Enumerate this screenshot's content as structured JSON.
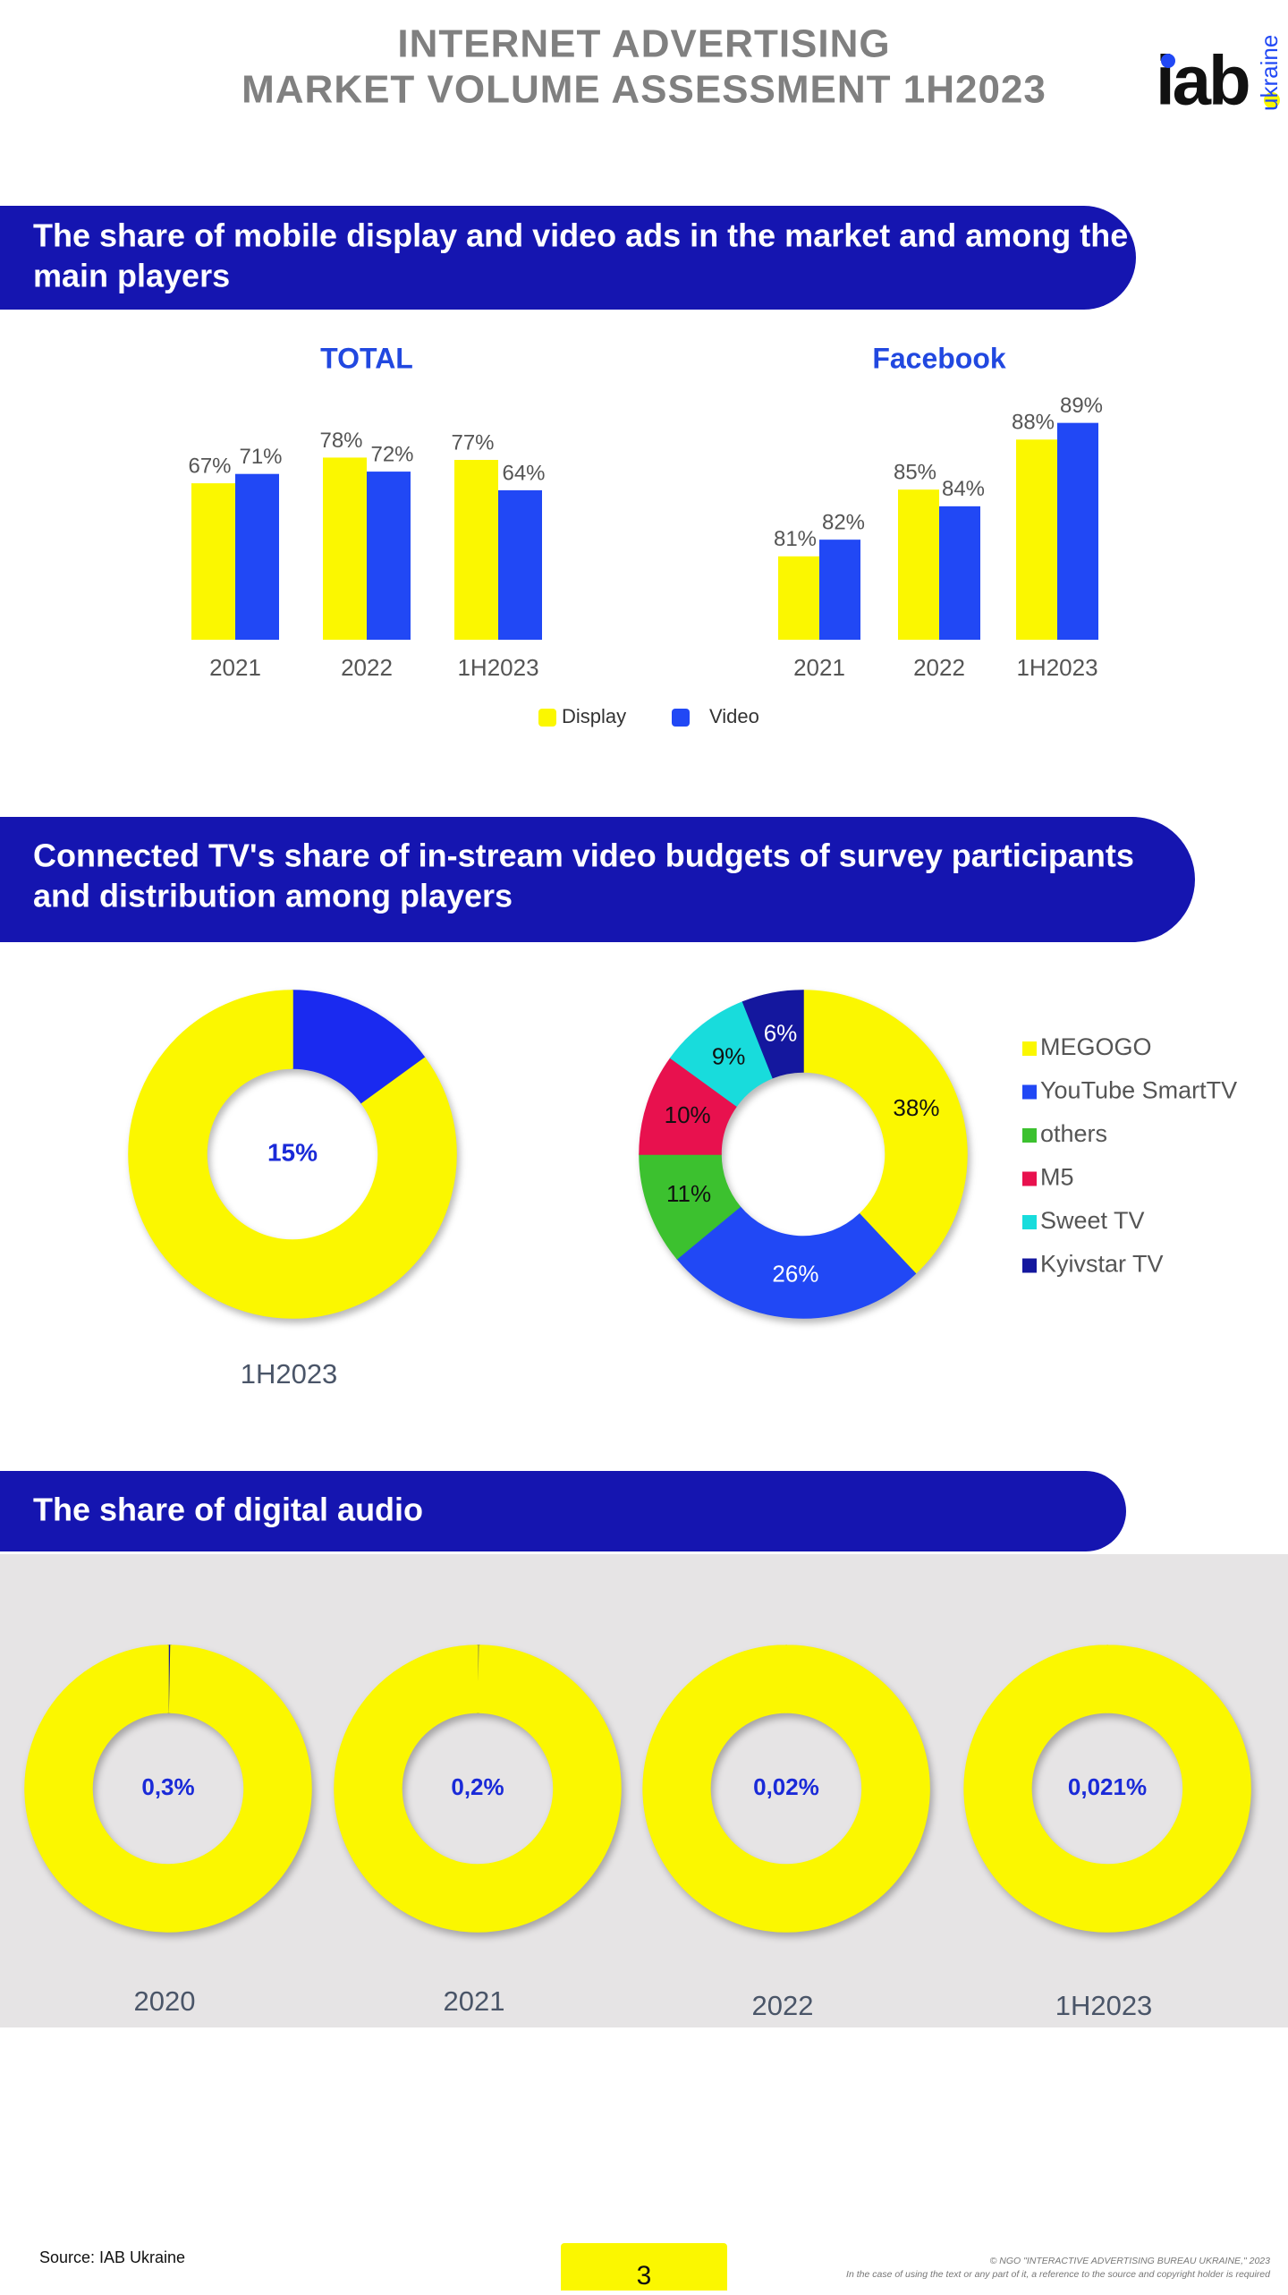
{
  "header": {
    "title": [
      "INTERNET ADVERTISING",
      "MARKET VOLUME ASSESSMENT 1H2023"
    ],
    "logo": "iab",
    "logo_sub": "ukraine"
  },
  "sections": [
    [
      "The share of mobile display and video ads in the market and among the",
      "main players"
    ],
    [
      "Connected TV's share of in-stream video budgets of survey participants",
      "and distribution among players"
    ],
    [
      "The share of digital audio"
    ]
  ],
  "chart_data": [
    {
      "type": "bar",
      "title": "TOTAL",
      "categories": [
        "2021",
        "2022",
        "1H2023"
      ],
      "ylim": [
        0,
        100
      ],
      "series": [
        {
          "name": "Display",
          "color": "#fbf700",
          "values": [
            67,
            78,
            77
          ],
          "value_labels": [
            "67%",
            "78%",
            "77%"
          ]
        },
        {
          "name": "Video",
          "color": "#2148f5",
          "values": [
            71,
            72,
            64
          ],
          "value_labels": [
            "71%",
            "72%",
            "64%"
          ]
        }
      ],
      "legend": true
    },
    {
      "type": "bar",
      "title": "Facebook",
      "categories": [
        "2021",
        "2022",
        "1H2023"
      ],
      "ylim": [
        76,
        90
      ],
      "series": [
        {
          "color": "#fbf700",
          "values": [
            81,
            85,
            88
          ],
          "value_labels": [
            "81%",
            "85%",
            "88%"
          ]
        },
        {
          "color": "#2148f5",
          "values": [
            82,
            84,
            89
          ],
          "value_labels": [
            "82%",
            "84%",
            "89%"
          ]
        }
      ]
    },
    {
      "type": "donut",
      "values": [
        15,
        85
      ],
      "value_labels": [
        "15%",
        null
      ],
      "colors": [
        "#1a2af0",
        "#fbf700"
      ],
      "label_position": "center",
      "caption": "1H2023"
    },
    {
      "type": "donut",
      "categories": [
        "MEGOGO",
        "YouTube SmartTV",
        "others",
        "M5",
        "Sweet TV",
        "Kyivstar TV"
      ],
      "values": [
        38,
        26,
        11,
        10,
        9,
        6
      ],
      "value_labels": [
        "38%",
        "26%",
        "11%",
        "10%",
        "9%",
        "6%"
      ],
      "colors": [
        "#fbf700",
        "#2148f5",
        "#3cc12f",
        "#e8114e",
        "#18dcdc",
        "#14179e"
      ],
      "label_colors": [
        "#111111",
        "#ffffff",
        "#111111",
        "#111111",
        "#111111",
        "#ffffff"
      ],
      "label_position": "inside",
      "legend": true
    },
    {
      "type": "donut",
      "values": [
        0.3,
        99.7
      ],
      "value_labels": [
        "0,3%",
        null
      ],
      "colors": [
        "#14179e",
        "#fbf700"
      ],
      "label_position": "center",
      "caption": "2020"
    },
    {
      "type": "donut",
      "values": [
        0.2,
        99.8
      ],
      "value_labels": [
        "0,2%",
        null
      ],
      "colors": [
        "#14179e",
        "#fbf700"
      ],
      "label_position": "center",
      "caption": "2021"
    },
    {
      "type": "donut",
      "values": [
        0.02,
        99.98
      ],
      "value_labels": [
        "0,02%",
        null
      ],
      "colors": [
        "#c8c8a0",
        "#fbf700"
      ],
      "label_position": "center",
      "caption": "2022"
    },
    {
      "type": "donut",
      "values": [
        0.021,
        99.979
      ],
      "value_labels": [
        "0,021%",
        null
      ],
      "colors": [
        "#c8c8a0",
        "#fbf700"
      ],
      "label_position": "center",
      "caption": "1H2023"
    }
  ],
  "footer": {
    "source": "Source: IAB Ukraine",
    "page": 3,
    "copyright": "© NGO \"INTERACTIVE ADVERTISING BUREAU UKRAINE,\" 2023",
    "notice": "In the case of using the text or any part of it, a reference to the source and copyright holder is required"
  }
}
